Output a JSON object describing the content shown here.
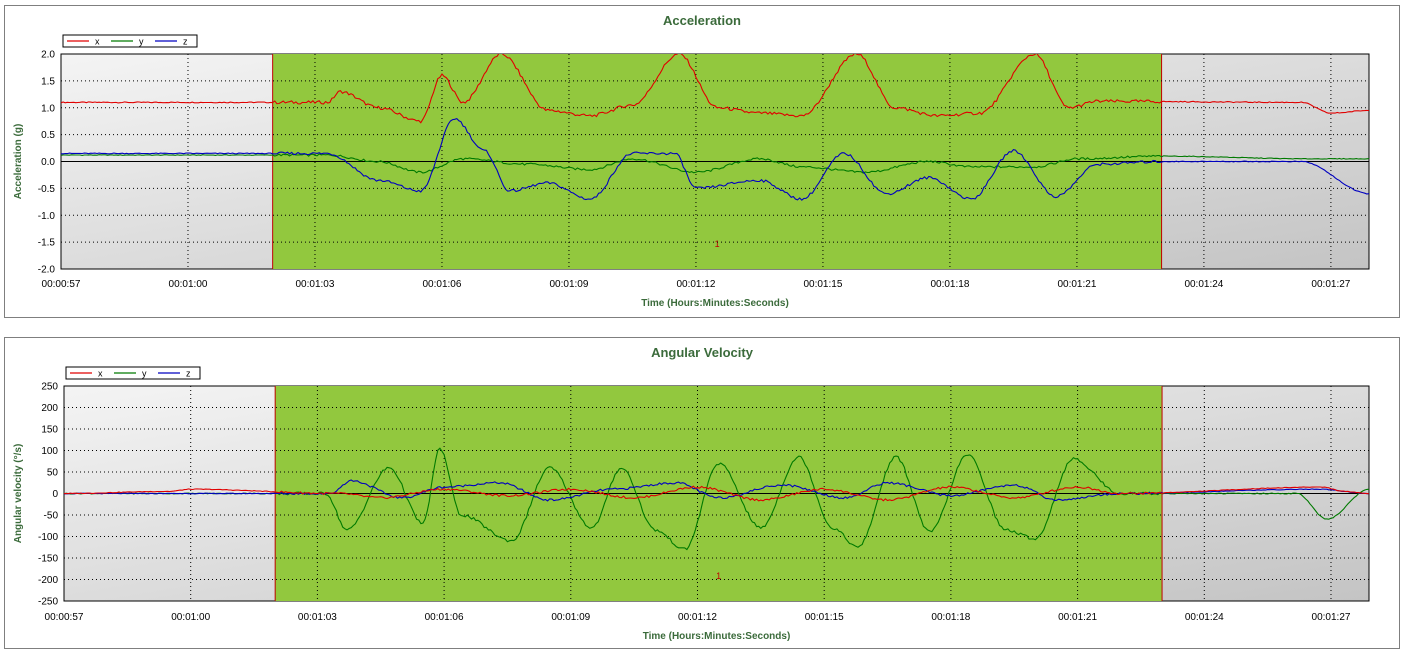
{
  "chart_data": [
    {
      "type": "line",
      "title": "Acceleration",
      "xlabel": "Time (Hours:Minutes:Seconds)",
      "ylabel": "Acceleration (g)",
      "ylim": [
        -2.0,
        2.0
      ],
      "yticks": [
        -2.0,
        -1.5,
        -1.0,
        -0.5,
        0.0,
        0.5,
        1.0,
        1.5,
        2.0
      ],
      "ytick_labels": [
        "-2.0",
        "-1.5",
        "-1.0",
        "-0.5",
        "0.0",
        "0.5",
        "1.0",
        "1.5",
        "2.0"
      ],
      "xlim": [
        "00:00:57",
        "00:01:27.9"
      ],
      "xticks": [
        "00:00:57",
        "00:01:00",
        "00:01:03",
        "00:01:06",
        "00:01:09",
        "00:01:12",
        "00:01:15",
        "00:01:18",
        "00:01:21",
        "00:01:24",
        "00:01:27"
      ],
      "grid": true,
      "legend": "top-left",
      "highlight_region": {
        "start": "00:01:02",
        "end": "00:01:23",
        "label": "1",
        "color": "#92c83e"
      },
      "series": [
        {
          "name": "x",
          "color": "#e00000",
          "x": [
            "00:00:57",
            "00:01:03.3",
            "00:01:03.6",
            "00:01:04.5",
            "00:01:05.5",
            "00:01:06",
            "00:01:06.5",
            "00:01:07.4",
            "00:01:08.5",
            "00:01:09.5",
            "00:01:10.5",
            "00:01:11.6",
            "00:01:12.5",
            "00:01:13.5",
            "00:01:14.5",
            "00:01:15.8",
            "00:01:16.7",
            "00:01:17.7",
            "00:01:18.7",
            "00:01:20",
            "00:01:20.8",
            "00:01:21.5",
            "00:01:26.3",
            "00:01:27",
            "00:01:27.9"
          ],
          "y": [
            1.1,
            1.1,
            1.3,
            1.0,
            0.75,
            1.6,
            1.1,
            2.0,
            0.95,
            0.85,
            1.05,
            2.0,
            1.0,
            0.9,
            0.85,
            2.0,
            1.0,
            0.85,
            0.9,
            2.0,
            1.0,
            1.12,
            1.1,
            0.9,
            0.95
          ]
        },
        {
          "name": "y",
          "color": "#007a00",
          "x": [
            "00:00:57",
            "00:01:03.3",
            "00:01:04.5",
            "00:01:05.5",
            "00:01:06.5",
            "00:01:08",
            "00:01:09.5",
            "00:01:10.5",
            "00:01:12",
            "00:01:13.5",
            "00:01:14.5",
            "00:01:16",
            "00:01:17.5",
            "00:01:18.5",
            "00:01:20",
            "00:01:21",
            "00:01:23",
            "00:01:26.5",
            "00:01:27.9"
          ],
          "y": [
            0.12,
            0.12,
            0.0,
            -0.2,
            0.05,
            -0.05,
            -0.15,
            0.05,
            -0.2,
            0.05,
            -0.1,
            -0.2,
            0.0,
            -0.1,
            -0.1,
            0.05,
            0.1,
            0.05,
            0.05
          ]
        },
        {
          "name": "z",
          "color": "#0000c0",
          "x": [
            "00:00:57",
            "00:01:03.3",
            "00:01:04.5",
            "00:01:05.5",
            "00:01:06.3",
            "00:01:07",
            "00:01:07.6",
            "00:01:08.5",
            "00:01:09.5",
            "00:01:10.5",
            "00:01:11.5",
            "00:01:12",
            "00:01:13.5",
            "00:01:14.5",
            "00:01:15.5",
            "00:01:16.5",
            "00:01:17.5",
            "00:01:18.5",
            "00:01:19.5",
            "00:01:20.5",
            "00:01:21.5",
            "00:01:23",
            "00:01:26.3",
            "00:01:27.9"
          ],
          "y": [
            0.15,
            0.15,
            -0.35,
            -0.55,
            0.8,
            0.2,
            -0.55,
            -0.4,
            -0.7,
            0.15,
            0.15,
            -0.5,
            -0.35,
            -0.7,
            0.15,
            -0.6,
            -0.3,
            -0.7,
            0.2,
            -0.65,
            -0.05,
            0.0,
            0.0,
            -0.6
          ]
        }
      ]
    },
    {
      "type": "line",
      "title": "Angular Velocity",
      "xlabel": "Time (Hours:Minutes:Seconds)",
      "ylabel": "Angular velocity (°/s)",
      "ylim": [
        -250,
        250
      ],
      "yticks": [
        -250,
        -200,
        -150,
        -100,
        -50,
        0,
        50,
        100,
        150,
        200,
        250
      ],
      "ytick_labels": [
        "-250",
        "-200",
        "-150",
        "-100",
        "-50",
        "0",
        "50",
        "100",
        "150",
        "200",
        "250"
      ],
      "xlim": [
        "00:00:57",
        "00:01:27.9"
      ],
      "xticks": [
        "00:00:57",
        "00:01:00",
        "00:01:03",
        "00:01:06",
        "00:01:09",
        "00:01:12",
        "00:01:15",
        "00:01:18",
        "00:01:21",
        "00:01:24",
        "00:01:27"
      ],
      "grid": true,
      "legend": "top-left",
      "highlight_region": {
        "start": "00:01:02",
        "end": "00:01:23",
        "label": "1",
        "color": "#92c83e"
      },
      "series": [
        {
          "name": "x",
          "color": "#e00000",
          "x": [
            "00:00:57",
            "00:00:59.5",
            "00:01:00",
            "00:01:03.5",
            "00:01:04.5",
            "00:01:06",
            "00:01:07.5",
            "00:01:09",
            "00:01:10.5",
            "00:01:12",
            "00:01:13.5",
            "00:01:15",
            "00:01:16.5",
            "00:01:18",
            "00:01:19.5",
            "00:01:21",
            "00:01:22",
            "00:01:26.8",
            "00:01:27.3",
            "00:01:27.9"
          ],
          "y": [
            0,
            5,
            10,
            0,
            -10,
            10,
            -5,
            10,
            -10,
            15,
            -15,
            10,
            -15,
            15,
            -10,
            15,
            0,
            15,
            5,
            0
          ]
        },
        {
          "name": "y",
          "color": "#007a00",
          "x": [
            "00:00:57",
            "00:01:03.2",
            "00:01:03.7",
            "00:01:04.7",
            "00:01:05.5",
            "00:01:05.9",
            "00:01:06.4",
            "00:01:07.6",
            "00:01:08.5",
            "00:01:09.5",
            "00:01:10.2",
            "00:01:11",
            "00:01:11.7",
            "00:01:12.5",
            "00:01:13.5",
            "00:01:14.4",
            "00:01:15.2",
            "00:01:15.8",
            "00:01:16.7",
            "00:01:17.5",
            "00:01:18.4",
            "00:01:19.3",
            "00:01:20",
            "00:01:20.9",
            "00:01:22",
            "00:01:26.2",
            "00:01:26.9",
            "00:01:27.9"
          ],
          "y": [
            0,
            0,
            -85,
            60,
            -70,
            105,
            -50,
            -110,
            60,
            -80,
            60,
            -85,
            -130,
            70,
            -80,
            85,
            -80,
            -125,
            85,
            -90,
            90,
            -85,
            -105,
            80,
            0,
            0,
            -60,
            10
          ]
        },
        {
          "name": "z",
          "color": "#0000c0",
          "x": [
            "00:00:57",
            "00:01:03.3",
            "00:01:03.8",
            "00:01:05",
            "00:01:06",
            "00:01:07.3",
            "00:01:08.5",
            "00:01:10",
            "00:01:11.5",
            "00:01:12.5",
            "00:01:14",
            "00:01:15.5",
            "00:01:16.5",
            "00:01:18",
            "00:01:19.5",
            "00:01:20.5",
            "00:01:22",
            "00:01:26.7",
            "00:01:27.9"
          ],
          "y": [
            0,
            0,
            30,
            -10,
            15,
            25,
            -15,
            10,
            25,
            -10,
            20,
            -10,
            25,
            -5,
            20,
            -15,
            0,
            10,
            0
          ]
        }
      ]
    }
  ]
}
